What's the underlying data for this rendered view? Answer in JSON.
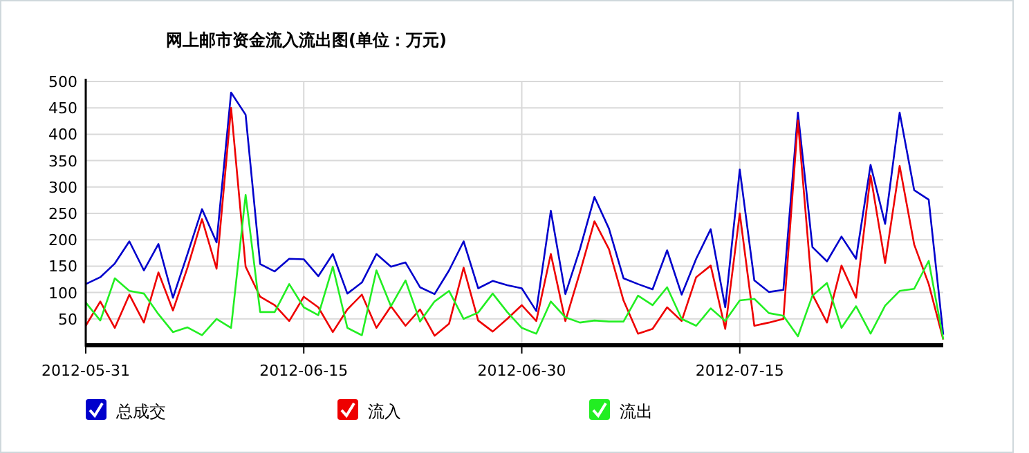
{
  "chart_data": {
    "type": "line",
    "title": "网上邮市资金流入流出图(单位：万元)",
    "x": [
      "2012-05-31",
      "2012-06-01",
      "2012-06-02",
      "2012-06-03",
      "2012-06-04",
      "2012-06-05",
      "2012-06-06",
      "2012-06-07",
      "2012-06-08",
      "2012-06-09",
      "2012-06-10",
      "2012-06-11",
      "2012-06-12",
      "2012-06-13",
      "2012-06-14",
      "2012-06-15",
      "2012-06-16",
      "2012-06-17",
      "2012-06-18",
      "2012-06-19",
      "2012-06-20",
      "2012-06-21",
      "2012-06-22",
      "2012-06-23",
      "2012-06-24",
      "2012-06-25",
      "2012-06-26",
      "2012-06-27",
      "2012-06-28",
      "2012-06-29",
      "2012-06-30",
      "2012-07-01",
      "2012-07-02",
      "2012-07-03",
      "2012-07-04",
      "2012-07-05",
      "2012-07-06",
      "2012-07-07",
      "2012-07-08",
      "2012-07-09",
      "2012-07-10",
      "2012-07-11",
      "2012-07-12",
      "2012-07-13",
      "2012-07-14",
      "2012-07-15",
      "2012-07-16",
      "2012-07-17",
      "2012-07-18",
      "2012-07-19",
      "2012-07-20",
      "2012-07-21",
      "2012-07-22",
      "2012-07-23",
      "2012-07-24",
      "2012-07-25",
      "2012-07-26",
      "2012-07-27",
      "2012-07-28",
      "2012-07-29"
    ],
    "series": [
      {
        "name": "总成交",
        "color": "#0000cc",
        "values": [
          116,
          129,
          155,
          197,
          142,
          192,
          90,
          173,
          258,
          195,
          479,
          437,
          154,
          140,
          164,
          163,
          131,
          173,
          98,
          119,
          173,
          149,
          157,
          110,
          97,
          142,
          197,
          108,
          122,
          114,
          108,
          65,
          255,
          97,
          182,
          281,
          221,
          127,
          116,
          106,
          180,
          96,
          164,
          220,
          72,
          333,
          123,
          101,
          105,
          441,
          186,
          159,
          206,
          164,
          342,
          230,
          441,
          294,
          276,
          20
        ]
      },
      {
        "name": "流入",
        "color": "#ee0000",
        "values": [
          37,
          83,
          33,
          96,
          43,
          138,
          66,
          147,
          239,
          145,
          450,
          149,
          92,
          76,
          46,
          92,
          72,
          25,
          68,
          96,
          33,
          74,
          37,
          68,
          18,
          41,
          147,
          47,
          26,
          50,
          76,
          46,
          173,
          46,
          138,
          235,
          182,
          85,
          22,
          31,
          72,
          46,
          129,
          151,
          31,
          250,
          37,
          43,
          50,
          426,
          96,
          43,
          151,
          90,
          322,
          156,
          340,
          191,
          116,
          11
        ]
      },
      {
        "name": "流出",
        "color": "#22ee22",
        "values": [
          81,
          47,
          127,
          103,
          98,
          59,
          25,
          34,
          19,
          50,
          33,
          285,
          63,
          63,
          116,
          72,
          57,
          149,
          33,
          19,
          142,
          74,
          123,
          45,
          83,
          103,
          50,
          62,
          98,
          63,
          33,
          22,
          83,
          53,
          43,
          47,
          45,
          45,
          94,
          76,
          110,
          50,
          37,
          70,
          46,
          85,
          88,
          61,
          56,
          17,
          94,
          118,
          33,
          74,
          22,
          75,
          103,
          107,
          160,
          11
        ]
      }
    ],
    "xlim": [
      "2012-05-31",
      "2012-07-29"
    ],
    "xticks": [
      "2012-05-31",
      "2012-06-15",
      "2012-06-30",
      "2012-07-15"
    ],
    "ylim": [
      0,
      500
    ],
    "yticks": [
      50,
      100,
      150,
      200,
      250,
      300,
      350,
      400,
      450,
      500
    ],
    "grid": true,
    "legend": "bottom"
  }
}
